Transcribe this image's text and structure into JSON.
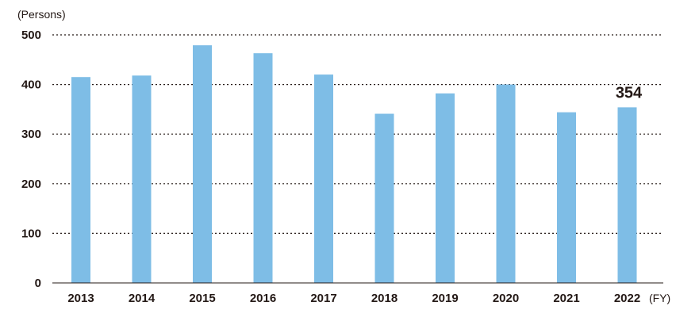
{
  "chart_data": {
    "type": "bar",
    "y_unit_label": "(Persons)",
    "x_unit_label": "(FY)",
    "categories": [
      "2013",
      "2014",
      "2015",
      "2016",
      "2017",
      "2018",
      "2019",
      "2020",
      "2021",
      "2022"
    ],
    "values": [
      415,
      418,
      479,
      463,
      420,
      341,
      382,
      400,
      344,
      354
    ],
    "ylim": [
      0,
      500
    ],
    "y_ticks": [
      0,
      100,
      200,
      300,
      400,
      500
    ],
    "grid": "dotted horizontal",
    "data_labels": [
      {
        "category": "2022",
        "text": "354"
      }
    ],
    "colors": {
      "bar": "#7ebde6",
      "text": "#231815",
      "grid": "#231815"
    }
  }
}
